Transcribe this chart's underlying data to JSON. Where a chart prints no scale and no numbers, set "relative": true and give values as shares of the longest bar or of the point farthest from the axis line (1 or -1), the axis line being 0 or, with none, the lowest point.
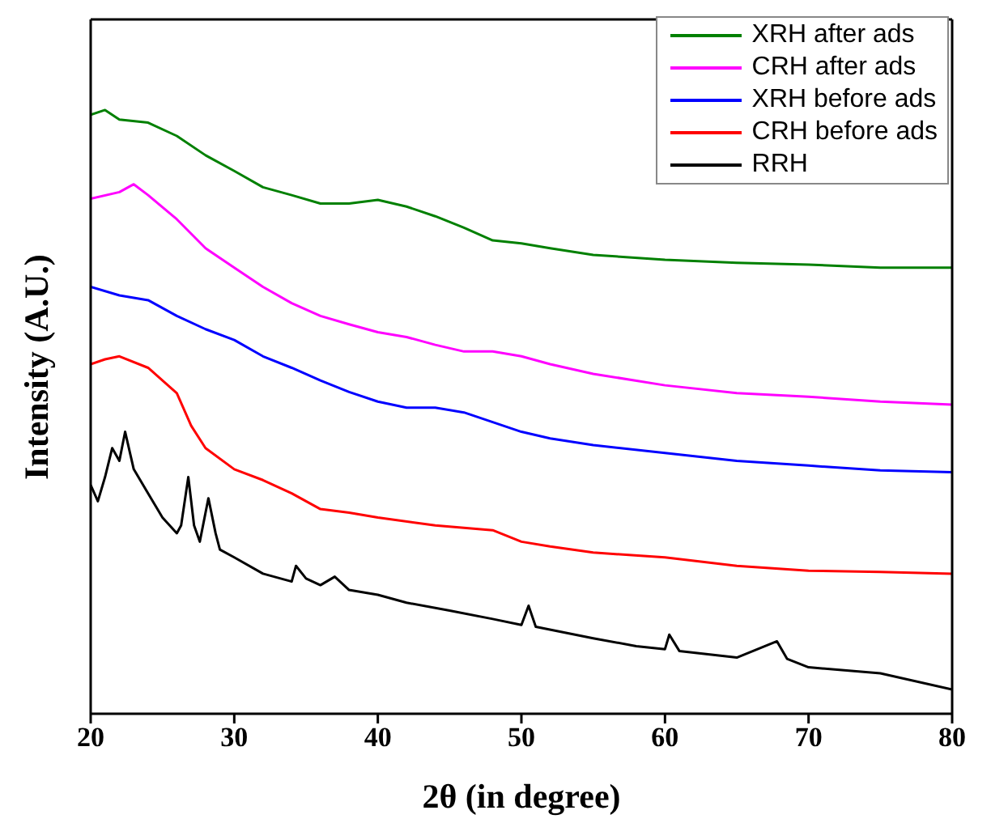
{
  "chart_data": {
    "type": "line",
    "xlabel": "2θ (in degree)",
    "ylabel": "Intensity (A.U.)",
    "relative": true,
    "xlim": [
      20,
      80
    ],
    "xticks": [
      20,
      30,
      40,
      50,
      60,
      70,
      80
    ],
    "legend": "top right",
    "marker": "none",
    "line_style": "solid",
    "series": [
      {
        "name": "XRH after ads",
        "color": "#008000",
        "x": [
          20,
          21,
          22,
          24,
          26,
          28,
          30,
          32,
          34,
          36,
          38,
          40,
          42,
          44,
          46,
          48,
          50,
          52,
          55,
          60,
          65,
          70,
          75,
          80
        ],
        "values": [
          0.992,
          1.0,
          0.984,
          0.979,
          0.957,
          0.925,
          0.899,
          0.872,
          0.859,
          0.845,
          0.845,
          0.851,
          0.84,
          0.824,
          0.805,
          0.784,
          0.779,
          0.771,
          0.76,
          0.752,
          0.747,
          0.744,
          0.739,
          0.739
        ]
      },
      {
        "name": "CRH after ads",
        "color": "#ff00ff",
        "x": [
          20,
          22,
          23,
          24,
          26,
          28,
          30,
          32,
          34,
          36,
          38,
          40,
          42,
          44,
          46,
          48,
          50,
          52,
          55,
          60,
          65,
          70,
          75,
          80
        ],
        "values": [
          0.853,
          0.864,
          0.877,
          0.859,
          0.819,
          0.771,
          0.739,
          0.707,
          0.68,
          0.659,
          0.645,
          0.632,
          0.624,
          0.611,
          0.6,
          0.6,
          0.592,
          0.579,
          0.563,
          0.544,
          0.531,
          0.525,
          0.517,
          0.512
        ]
      },
      {
        "name": "XRH before ads",
        "color": "#0000ff",
        "x": [
          20,
          22,
          24,
          26,
          28,
          30,
          32,
          34,
          36,
          38,
          40,
          42,
          44,
          46,
          48,
          50,
          52,
          55,
          60,
          65,
          70,
          75,
          80
        ],
        "values": [
          0.707,
          0.693,
          0.685,
          0.659,
          0.637,
          0.619,
          0.592,
          0.573,
          0.552,
          0.533,
          0.517,
          0.507,
          0.507,
          0.499,
          0.483,
          0.467,
          0.456,
          0.445,
          0.432,
          0.419,
          0.411,
          0.403,
          0.4
        ]
      },
      {
        "name": "CRH before ads",
        "color": "#ff0000",
        "x": [
          20,
          21,
          22,
          24,
          26,
          27,
          28,
          30,
          32,
          34,
          36,
          38,
          40,
          44,
          48,
          50,
          52,
          55,
          60,
          65,
          70,
          75,
          80
        ],
        "values": [
          0.579,
          0.587,
          0.592,
          0.573,
          0.531,
          0.477,
          0.44,
          0.405,
          0.387,
          0.365,
          0.339,
          0.333,
          0.325,
          0.312,
          0.304,
          0.285,
          0.277,
          0.267,
          0.259,
          0.245,
          0.237,
          0.235,
          0.232
        ]
      },
      {
        "name": "RRH",
        "color": "#000000",
        "x": [
          20,
          20.5,
          21,
          21.5,
          22,
          22.4,
          23,
          24,
          25,
          26,
          26.3,
          26.8,
          27.2,
          27.6,
          28.2,
          28.7,
          29,
          30,
          32,
          34,
          34.3,
          35,
          36,
          37,
          38,
          40,
          42,
          45,
          48,
          50,
          50.5,
          51,
          55,
          58,
          60,
          60.3,
          61,
          65,
          67.8,
          68.5,
          70,
          75,
          80
        ],
        "values": [
          0.379,
          0.352,
          0.392,
          0.44,
          0.419,
          0.467,
          0.405,
          0.365,
          0.325,
          0.299,
          0.312,
          0.392,
          0.312,
          0.285,
          0.357,
          0.299,
          0.272,
          0.259,
          0.232,
          0.219,
          0.245,
          0.224,
          0.213,
          0.227,
          0.205,
          0.197,
          0.184,
          0.171,
          0.157,
          0.147,
          0.179,
          0.144,
          0.125,
          0.112,
          0.107,
          0.131,
          0.104,
          0.093,
          0.12,
          0.091,
          0.077,
          0.067,
          0.04
        ]
      }
    ]
  }
}
